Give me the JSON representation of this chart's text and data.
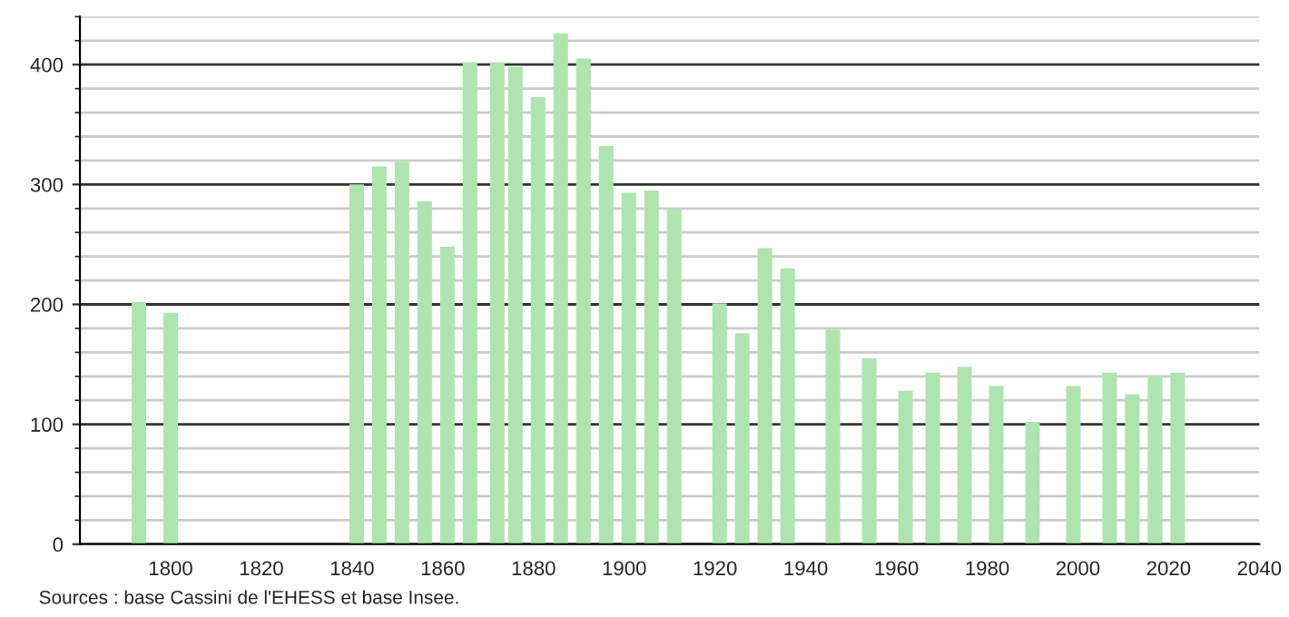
{
  "chart_data": {
    "type": "bar",
    "x": [
      1793,
      1800,
      1841,
      1846,
      1851,
      1856,
      1861,
      1866,
      1872,
      1876,
      1881,
      1886,
      1891,
      1896,
      1901,
      1906,
      1911,
      1921,
      1926,
      1931,
      1936,
      1946,
      1954,
      1962,
      1968,
      1975,
      1982,
      1990,
      1999,
      2007,
      2012,
      2017,
      2022
    ],
    "values": [
      202,
      193,
      300,
      315,
      319,
      286,
      248,
      402,
      402,
      398,
      373,
      426,
      405,
      332,
      293,
      295,
      279,
      201,
      176,
      247,
      230,
      179,
      155,
      128,
      143,
      148,
      132,
      102,
      132,
      143,
      125,
      140,
      143
    ],
    "color": "#aee4ae",
    "xlim": [
      1780,
      2040
    ],
    "xticks": [
      1800,
      1820,
      1840,
      1860,
      1880,
      1900,
      1920,
      1940,
      1960,
      1980,
      2000,
      2020,
      2040
    ],
    "ylim": [
      0,
      440
    ],
    "yticks": [
      0,
      100,
      200,
      300,
      400
    ],
    "grid": "y",
    "legend": false,
    "annotations": [
      "Sources : base Cassini de l'EHESS et base Insee."
    ]
  }
}
